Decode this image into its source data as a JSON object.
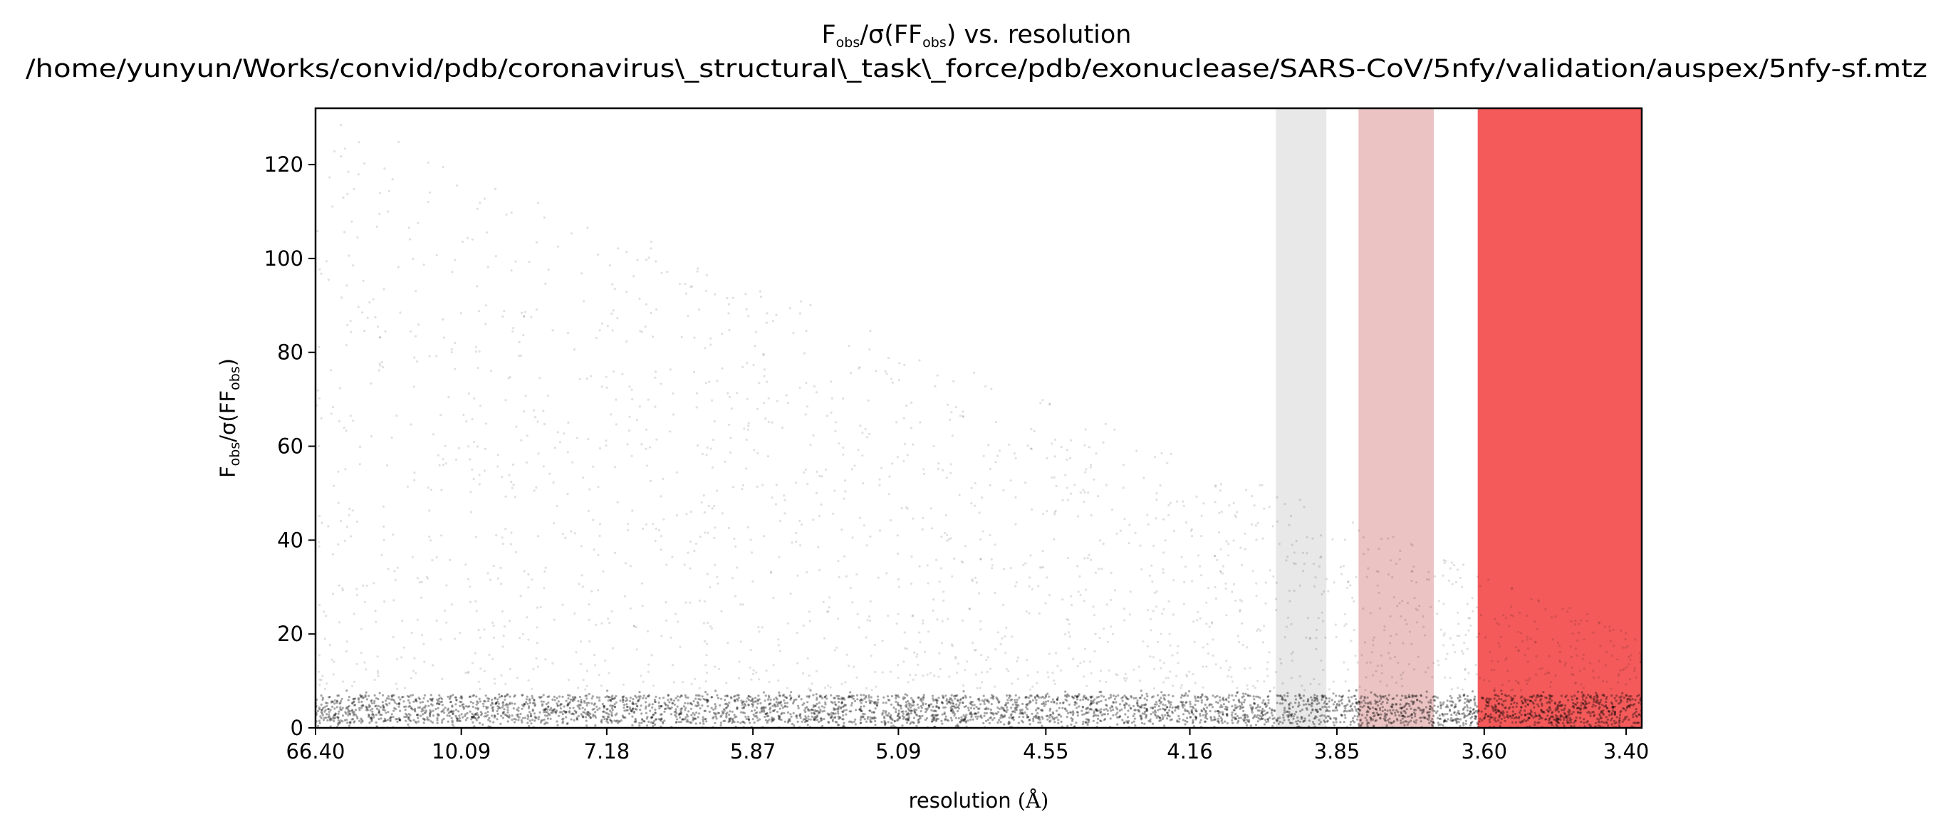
{
  "chart_data": {
    "type": "scatter",
    "title_main": "vs. resolution",
    "title_path": "/home/yunyun/Works/convid/pdb/coronavirus\\_structural\\_task\\_force/pdb/exonuclease/SARS-CoV/5nfy/validation/auspex/5nfy-sf.mtz",
    "ratio_label": {
      "F": "F",
      "obs": "obs",
      "sigma_open": "/σ(F",
      "close": ")"
    },
    "xlabel_text": "resolution ",
    "xlabel_unit": "(Å)",
    "x_scale": "1/d²",
    "x_tick_labels": [
      "66.40",
      "10.09",
      "7.18",
      "5.87",
      "5.09",
      "4.55",
      "4.16",
      "3.85",
      "3.60",
      "3.40"
    ],
    "y_tick_labels": [
      "0",
      "20",
      "40",
      "60",
      "80",
      "100",
      "120"
    ],
    "ylim": [
      0,
      132
    ],
    "xlim_resolution": [
      66.4,
      3.38
    ],
    "ice_ring_bands": [
      {
        "from": 3.97,
        "to": 3.87,
        "color": "#e8e8e8"
      },
      {
        "from": 3.81,
        "to": 3.68,
        "color": "#ebc3c3"
      },
      {
        "from": 3.61,
        "to": 3.38,
        "color": "#f45a5a"
      }
    ],
    "point_color": "#000000",
    "point_density": "dense near 0-10, scattered up to ~132, decreasing toward high resolution",
    "grid": false,
    "legend": "none"
  }
}
